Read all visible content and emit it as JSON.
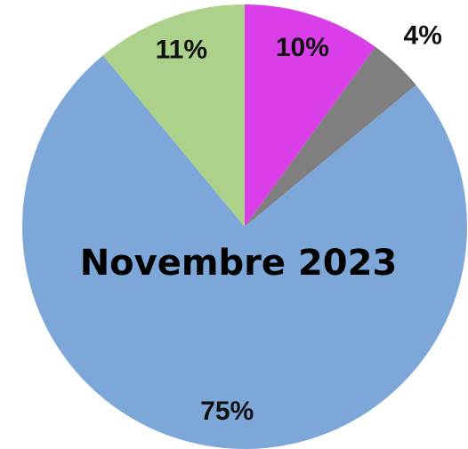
{
  "chart_data": {
    "type": "pie",
    "title": "Novembre 2023",
    "values": [
      10,
      4,
      75,
      11
    ],
    "value_labels": [
      "10%",
      "4%",
      "75%",
      "11%"
    ],
    "colors": [
      "#d93ee8",
      "#7f7f7f",
      "#7da7d9",
      "#acd18a"
    ]
  }
}
